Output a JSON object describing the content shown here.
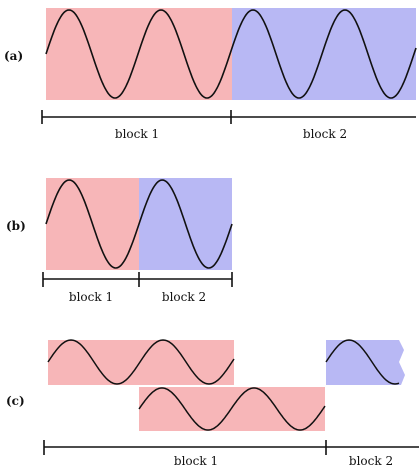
{
  "panels": [
    {
      "label": "(a)",
      "blocks": [
        {
          "label": "block 1",
          "color": "#f7b6b8"
        },
        {
          "label": "block 2",
          "color": "#b8b8f4"
        }
      ]
    },
    {
      "label": "(b)",
      "blocks": [
        {
          "label": "block 1",
          "color": "#f7b6b8"
        },
        {
          "label": "block 2",
          "color": "#b8b8f4"
        }
      ]
    },
    {
      "label": "(c)",
      "blocks": [
        {
          "label": "block 1",
          "color": "#f7b6b8"
        },
        {
          "label": "block 2",
          "color": "#b8b8f4"
        }
      ]
    }
  ],
  "wave_color": "#111111"
}
